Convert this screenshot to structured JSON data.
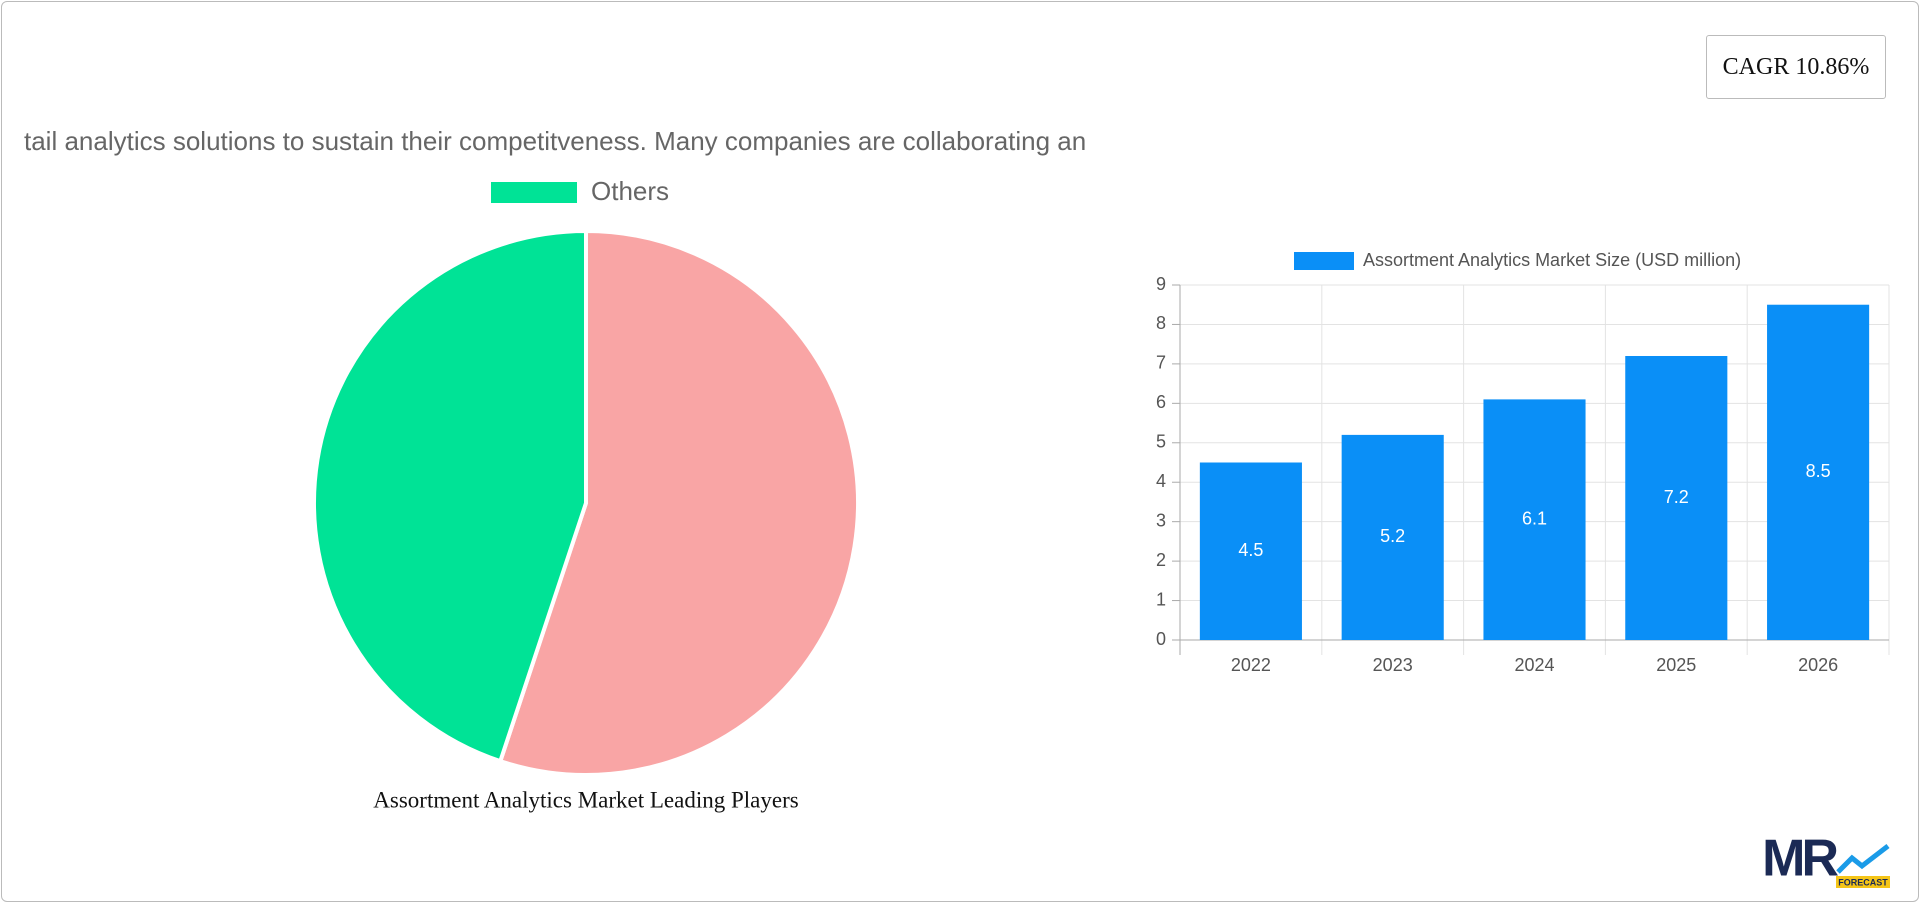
{
  "cagr": "CAGR 10.86%",
  "scroll_text": "tail analytics solutions to sustain their competitveness. Many companies are collaborating an",
  "logo": {
    "mark": "MR",
    "sub": "FORECAST"
  },
  "chart_data": [
    {
      "type": "pie",
      "title": "Assortment Analytics Market Leading Players",
      "categories": [
        null,
        "Others"
      ],
      "values": [
        55.1,
        44.9
      ],
      "colors": [
        "#f9a5a5",
        "#00e396"
      ],
      "legend": "top"
    },
    {
      "type": "bar",
      "categories": [
        "2022",
        "2023",
        "2024",
        "2025",
        "2026"
      ],
      "series": [
        {
          "name": "Assortment Analytics Market Size (USD million)",
          "color": "#0a8ff7",
          "values": [
            4.5,
            5.2,
            6.1,
            7.2,
            8.5
          ]
        }
      ],
      "ylim": [
        0,
        9
      ],
      "yticks": [
        0,
        1,
        2,
        3,
        4,
        5,
        6,
        7,
        8,
        9
      ],
      "grid": true,
      "legend": "top",
      "data_labels": true
    }
  ]
}
